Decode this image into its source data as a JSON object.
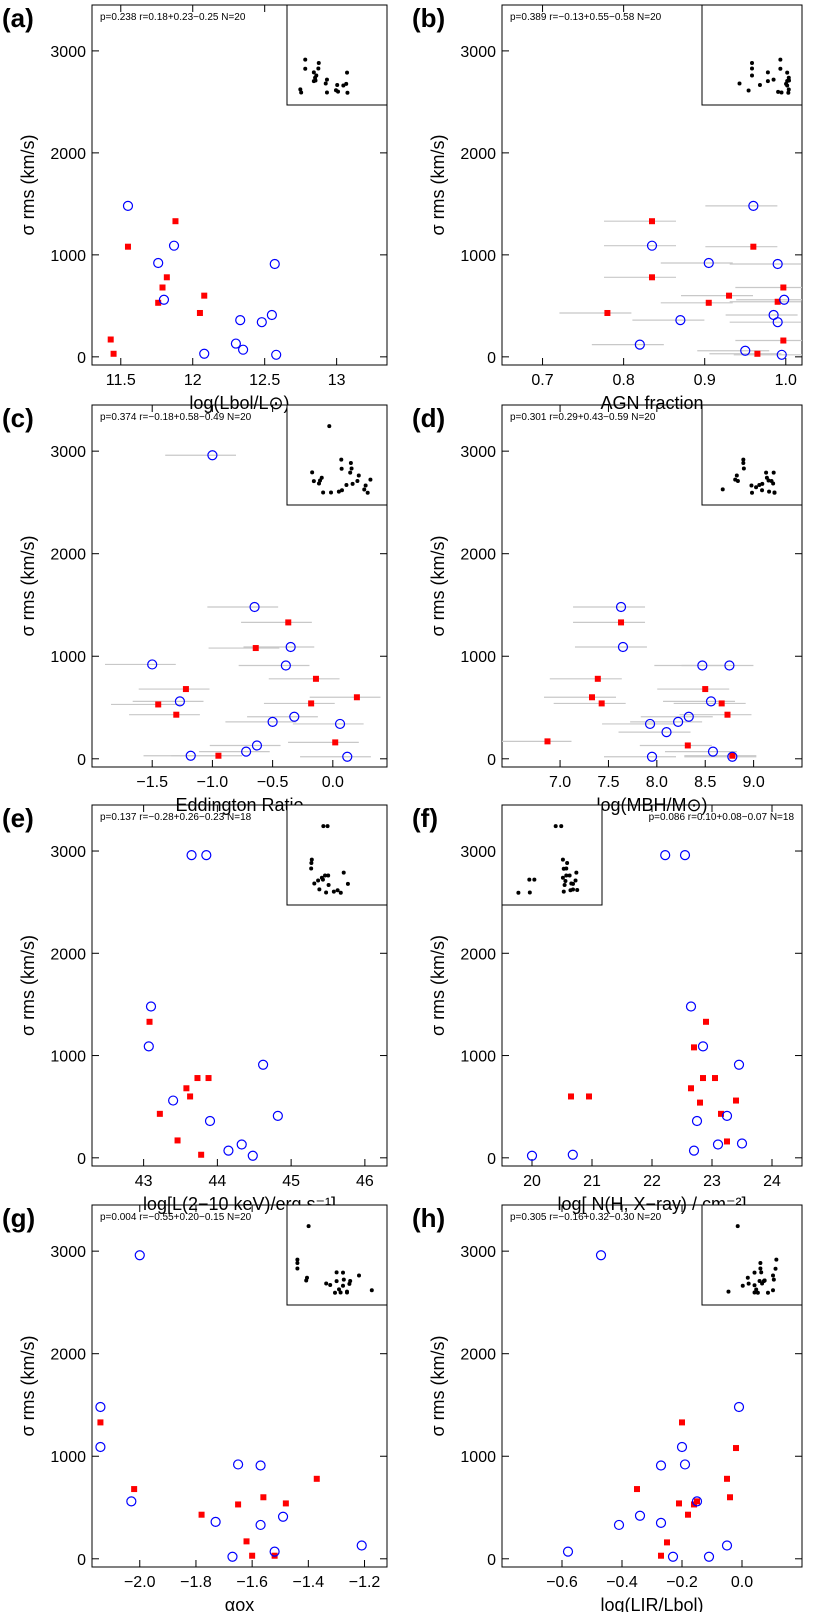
{
  "chart_data": [
    {
      "panel": "(a)",
      "type": "scatter",
      "stats": "p=0.238 r=0.18+0.23−0.25 N=20",
      "xlabel": "log(Lbol/L⊙)",
      "ylabel": "σ rms (km/s)",
      "xlim": [
        11.3,
        13.35
      ],
      "ylim": [
        -80,
        3450
      ],
      "xticks": [
        11.5,
        12.0,
        12.5,
        13.0
      ],
      "yticks": [
        0,
        1000,
        2000,
        3000
      ],
      "inset": "top-right",
      "red_squares": [
        [
          11.43,
          170
        ],
        [
          11.45,
          30
        ],
        [
          11.55,
          1080
        ],
        [
          11.76,
          530
        ],
        [
          11.79,
          680
        ],
        [
          11.82,
          780
        ],
        [
          11.88,
          1330
        ],
        [
          12.05,
          430
        ],
        [
          12.08,
          600
        ]
      ],
      "blue_circles": [
        [
          11.55,
          1480
        ],
        [
          11.76,
          920
        ],
        [
          11.8,
          560
        ],
        [
          11.87,
          1090
        ],
        [
          12.08,
          30
        ],
        [
          12.3,
          130
        ],
        [
          12.33,
          360
        ],
        [
          12.35,
          70
        ],
        [
          12.48,
          340
        ],
        [
          12.55,
          410
        ],
        [
          12.57,
          910
        ],
        [
          12.58,
          20
        ]
      ]
    },
    {
      "panel": "(b)",
      "type": "scatter",
      "stats": "p=0.389 r=−0.13+0.55−0.58 N=20",
      "xlabel": "AGN fraction",
      "ylabel": "σ rms (km/s)",
      "xlim": [
        0.65,
        1.02
      ],
      "ylim": [
        -80,
        3450
      ],
      "xticks": [
        0.7,
        0.8,
        0.9,
        1.0
      ],
      "yticks": [
        0,
        1000,
        2000,
        3000
      ],
      "inset": "top-right",
      "red_squares": [
        [
          0.78,
          430
        ],
        [
          0.835,
          1330
        ],
        [
          0.835,
          780
        ],
        [
          0.905,
          530
        ],
        [
          0.93,
          600
        ],
        [
          0.96,
          1080
        ],
        [
          0.965,
          30
        ],
        [
          0.99,
          540
        ],
        [
          0.997,
          680
        ],
        [
          0.997,
          160
        ]
      ],
      "blue_circles": [
        [
          0.835,
          1090
        ],
        [
          0.82,
          120
        ],
        [
          0.87,
          360
        ],
        [
          0.905,
          920
        ],
        [
          0.95,
          60
        ],
        [
          0.96,
          1480
        ],
        [
          0.985,
          410
        ],
        [
          0.99,
          340
        ],
        [
          0.99,
          910
        ],
        [
          0.995,
          20
        ],
        [
          0.998,
          560
        ]
      ]
    },
    {
      "panel": "(c)",
      "type": "scatter",
      "stats": "p=0.374 r=−0.18+0.58−0.49 N=20",
      "xlabel": "Eddington Ratio",
      "ylabel": "σ rms (km/s)",
      "xlim": [
        -2.0,
        0.45
      ],
      "ylim": [
        -80,
        3450
      ],
      "xticks": [
        -1.5,
        -1.0,
        -0.5,
        0.0
      ],
      "yticks": [
        0,
        1000,
        2000,
        3000
      ],
      "inset": "top-right",
      "red_squares": [
        [
          -1.45,
          530
        ],
        [
          -1.3,
          430
        ],
        [
          -1.22,
          680
        ],
        [
          -0.95,
          30
        ],
        [
          -0.64,
          1080
        ],
        [
          -0.37,
          1330
        ],
        [
          -0.18,
          540
        ],
        [
          -0.14,
          780
        ],
        [
          0.02,
          160
        ],
        [
          0.2,
          600
        ]
      ],
      "blue_circles": [
        [
          -1.5,
          920
        ],
        [
          -1.27,
          560
        ],
        [
          -1.18,
          30
        ],
        [
          -1.0,
          2960
        ],
        [
          -0.72,
          70
        ],
        [
          -0.65,
          1480
        ],
        [
          -0.63,
          130
        ],
        [
          -0.5,
          360
        ],
        [
          -0.39,
          910
        ],
        [
          -0.35,
          1090
        ],
        [
          -0.32,
          410
        ],
        [
          0.06,
          340
        ],
        [
          0.12,
          20
        ]
      ]
    },
    {
      "panel": "(d)",
      "type": "scatter",
      "stats": "p=0.301 r=0.29+0.43−0.59 N=20",
      "xlabel": "log(MBH/M⊙)",
      "ylabel": "σ rms (km/s)",
      "xlim": [
        6.4,
        9.5
      ],
      "ylim": [
        -80,
        3450
      ],
      "xticks": [
        7.0,
        7.5,
        8.0,
        8.5,
        9.0
      ],
      "yticks": [
        0,
        1000,
        2000,
        3000
      ],
      "inset": "top-right",
      "red_squares": [
        [
          6.87,
          170
        ],
        [
          7.33,
          600
        ],
        [
          7.39,
          780
        ],
        [
          7.43,
          540
        ],
        [
          7.63,
          1330
        ],
        [
          8.32,
          130
        ],
        [
          8.5,
          680
        ],
        [
          8.67,
          540
        ],
        [
          8.73,
          430
        ],
        [
          8.78,
          30
        ]
      ],
      "blue_circles": [
        [
          7.63,
          1480
        ],
        [
          7.65,
          1090
        ],
        [
          7.93,
          340
        ],
        [
          7.95,
          20
        ],
        [
          8.1,
          260
        ],
        [
          8.22,
          360
        ],
        [
          8.33,
          410
        ],
        [
          8.47,
          910
        ],
        [
          8.56,
          560
        ],
        [
          8.58,
          70
        ],
        [
          8.75,
          910
        ],
        [
          8.78,
          20
        ]
      ]
    },
    {
      "panel": "(e)",
      "type": "scatter",
      "stats": "p=0.137 r=−0.28+0.26−0.23 N=18",
      "xlabel": "log[L(2−10 keV)/erg s⁻¹]",
      "ylabel": "σ rms (km/s)",
      "xlim": [
        42.3,
        46.3
      ],
      "ylim": [
        -80,
        3450
      ],
      "xticks": [
        43,
        44,
        45,
        46
      ],
      "yticks": [
        0,
        1000,
        2000,
        3000
      ],
      "inset": "top-right",
      "red_squares": [
        [
          43.08,
          1330
        ],
        [
          43.22,
          430
        ],
        [
          43.46,
          170
        ],
        [
          43.58,
          680
        ],
        [
          43.63,
          600
        ],
        [
          43.73,
          780
        ],
        [
          43.78,
          30
        ],
        [
          43.88,
          780
        ]
      ],
      "blue_circles": [
        [
          43.07,
          1090
        ],
        [
          43.1,
          1480
        ],
        [
          43.4,
          560
        ],
        [
          43.65,
          2960
        ],
        [
          43.85,
          2960
        ],
        [
          43.9,
          360
        ],
        [
          44.15,
          70
        ],
        [
          44.33,
          130
        ],
        [
          44.48,
          20
        ],
        [
          44.62,
          910
        ],
        [
          44.82,
          410
        ]
      ]
    },
    {
      "panel": "(f)",
      "type": "scatter",
      "stats": "p=0.086 r=0.10+0.08−0.07 N=18",
      "xlabel": "log[ N(H, X−ray) / cm⁻²]",
      "ylabel": "σ rms (km/s)",
      "xlim": [
        19.5,
        24.5
      ],
      "ylim": [
        -80,
        3450
      ],
      "xticks": [
        20,
        21,
        22,
        23,
        24
      ],
      "yticks": [
        0,
        1000,
        2000,
        3000
      ],
      "inset": "top-left",
      "red_squares": [
        [
          20.65,
          600
        ],
        [
          20.95,
          600
        ],
        [
          22.65,
          680
        ],
        [
          22.7,
          1080
        ],
        [
          22.8,
          540
        ],
        [
          22.85,
          780
        ],
        [
          22.9,
          1330
        ],
        [
          23.05,
          780
        ],
        [
          23.15,
          430
        ],
        [
          23.25,
          160
        ],
        [
          23.4,
          560
        ]
      ],
      "blue_circles": [
        [
          20.0,
          20
        ],
        [
          20.68,
          30
        ],
        [
          22.22,
          2960
        ],
        [
          22.55,
          2960
        ],
        [
          22.65,
          1480
        ],
        [
          22.7,
          70
        ],
        [
          22.75,
          360
        ],
        [
          22.85,
          1090
        ],
        [
          23.1,
          130
        ],
        [
          23.25,
          410
        ],
        [
          23.45,
          910
        ],
        [
          23.5,
          140
        ]
      ]
    },
    {
      "panel": "(g)",
      "type": "scatter",
      "stats": "p=0.004 r=−0.55+0.20−0.15 N=20",
      "xlabel": "αox",
      "ylabel": "σ rms (km/s)",
      "xlim": [
        -2.17,
        -1.12
      ],
      "ylim": [
        -80,
        3450
      ],
      "xticks": [
        -2.0,
        -1.8,
        -1.6,
        -1.4,
        -1.2
      ],
      "yticks": [
        0,
        1000,
        2000,
        3000
      ],
      "inset": "top-right",
      "red_squares": [
        [
          -2.14,
          1330
        ],
        [
          -2.02,
          680
        ],
        [
          -1.78,
          430
        ],
        [
          -1.65,
          530
        ],
        [
          -1.62,
          170
        ],
        [
          -1.6,
          30
        ],
        [
          -1.56,
          600
        ],
        [
          -1.52,
          30
        ],
        [
          -1.48,
          540
        ],
        [
          -1.37,
          780
        ]
      ],
      "blue_circles": [
        [
          -2.14,
          1480
        ],
        [
          -2.14,
          1090
        ],
        [
          -2.03,
          560
        ],
        [
          -2.0,
          2960
        ],
        [
          -1.73,
          360
        ],
        [
          -1.67,
          20
        ],
        [
          -1.65,
          920
        ],
        [
          -1.57,
          910
        ],
        [
          -1.57,
          330
        ],
        [
          -1.52,
          70
        ],
        [
          -1.49,
          410
        ],
        [
          -1.21,
          130
        ]
      ]
    },
    {
      "panel": "(h)",
      "type": "scatter",
      "stats": "p=0.305 r=−0.16+0.32−0.30 N=20",
      "xlabel": "log(LIR/Lbol)",
      "ylabel": "σ rms (km/s)",
      "xlim": [
        -0.8,
        0.2
      ],
      "ylim": [
        -80,
        3450
      ],
      "xticks": [
        -0.6,
        -0.4,
        -0.2,
        0.0
      ],
      "yticks": [
        0,
        1000,
        2000,
        3000
      ],
      "inset": "top-right",
      "red_squares": [
        [
          -0.35,
          680
        ],
        [
          -0.27,
          30
        ],
        [
          -0.25,
          160
        ],
        [
          -0.21,
          540
        ],
        [
          -0.2,
          1330
        ],
        [
          -0.18,
          430
        ],
        [
          -0.16,
          530
        ],
        [
          -0.15,
          560
        ],
        [
          -0.05,
          780
        ],
        [
          -0.04,
          600
        ],
        [
          -0.02,
          1080
        ]
      ],
      "blue_circles": [
        [
          -0.58,
          70
        ],
        [
          -0.47,
          2960
        ],
        [
          -0.41,
          330
        ],
        [
          -0.34,
          420
        ],
        [
          -0.27,
          910
        ],
        [
          -0.27,
          350
        ],
        [
          -0.23,
          20
        ],
        [
          -0.2,
          1090
        ],
        [
          -0.19,
          920
        ],
        [
          -0.15,
          560
        ],
        [
          -0.11,
          20
        ],
        [
          -0.05,
          130
        ],
        [
          -0.01,
          1480
        ]
      ]
    }
  ]
}
